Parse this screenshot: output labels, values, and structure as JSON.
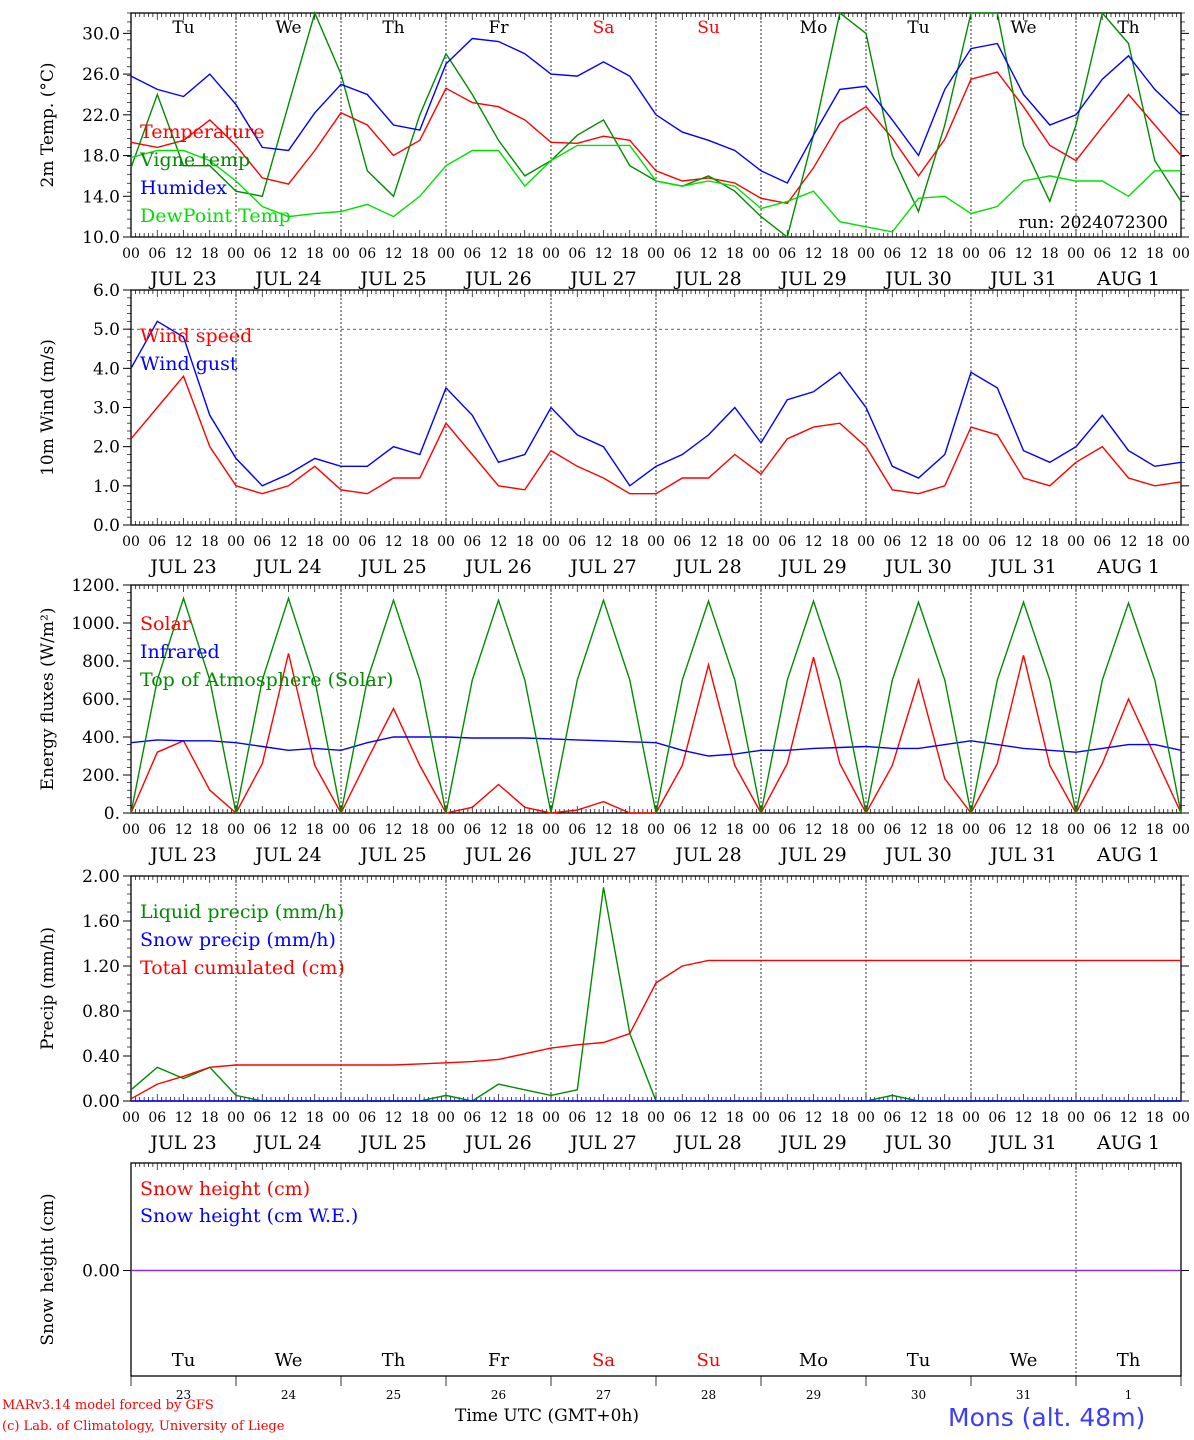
{
  "chart_data": [
    {
      "type": "line",
      "ylabel": "2m Temp. (°C)",
      "ylim": [
        10,
        32
      ],
      "yticks": [
        "10.0",
        "14.0",
        "18.0",
        "22.0",
        "26.0",
        "30.0"
      ],
      "run_label": "run: 2024072300",
      "x_hours": [
        0,
        6,
        12,
        18,
        24,
        30,
        36,
        42,
        48,
        54,
        60,
        66,
        72,
        78,
        84,
        90,
        96,
        102,
        108,
        114,
        120,
        126,
        132,
        138,
        144,
        150,
        156,
        162,
        168,
        174,
        180,
        186,
        192,
        198,
        204,
        210,
        216,
        222,
        228,
        234,
        240
      ],
      "series": [
        {
          "name": "Temperature",
          "color": "#ff0000",
          "values": [
            19.3,
            18.8,
            19.5,
            21.5,
            19.0,
            15.8,
            15.2,
            18.5,
            22.2,
            21.0,
            18.0,
            19.5,
            24.6,
            23.2,
            22.8,
            21.5,
            19.3,
            19.2,
            19.9,
            19.5,
            16.5,
            15.5,
            15.8,
            15.3,
            13.8,
            13.3,
            16.8,
            21.2,
            22.8,
            19.7,
            16.0,
            19.6,
            25.5,
            26.2,
            22.8,
            19.0,
            17.5,
            20.8,
            24.0,
            21.0,
            18.0
          ]
        },
        {
          "name": "Vigne temp",
          "color": "#008c00",
          "values": [
            16.8,
            24.0,
            17.0,
            17.0,
            14.5,
            14.0,
            23.0,
            33.0,
            26.0,
            16.5,
            14.0,
            22.0,
            28.0,
            24.0,
            19.5,
            16.0,
            17.5,
            20.0,
            21.5,
            17.0,
            15.5,
            15.0,
            16.0,
            14.5,
            12.0,
            9.5,
            20.0,
            32.0,
            30.0,
            18.0,
            12.5,
            21.0,
            33.0,
            33.0,
            19.0,
            13.5,
            21.0,
            33.0,
            29.0,
            17.5,
            13.5
          ]
        },
        {
          "name": "Humidex",
          "color": "#0000ff",
          "values": [
            25.8,
            24.5,
            23.8,
            26.0,
            23.0,
            18.8,
            18.5,
            22.2,
            25.0,
            24.0,
            21.0,
            20.5,
            27.0,
            29.5,
            29.2,
            28.0,
            26.0,
            25.8,
            27.2,
            25.8,
            22.0,
            20.3,
            19.5,
            18.5,
            16.5,
            15.3,
            20.0,
            24.5,
            24.8,
            21.5,
            18.0,
            24.5,
            28.5,
            29.0,
            24.0,
            21.0,
            22.0,
            25.5,
            27.8,
            24.5,
            22.0
          ]
        },
        {
          "name": "DewPoint Temp",
          "color": "#00e000",
          "values": [
            17.8,
            18.5,
            18.5,
            17.5,
            15.5,
            13.0,
            12.0,
            12.3,
            12.5,
            13.2,
            12.0,
            14.0,
            17.0,
            18.5,
            18.5,
            15.0,
            17.5,
            19.0,
            19.0,
            19.0,
            15.5,
            15.0,
            15.5,
            15.0,
            12.8,
            13.5,
            14.5,
            11.5,
            11.0,
            10.5,
            13.8,
            14.0,
            12.3,
            13.0,
            15.5,
            16.0,
            15.5,
            15.5,
            14.0,
            16.5,
            16.5
          ]
        }
      ]
    },
    {
      "type": "line",
      "ylabel": "10m Wind (m/s)",
      "ylim": [
        0,
        6
      ],
      "yticks": [
        "0.0",
        "1.0",
        "2.0",
        "3.0",
        "4.0",
        "5.0",
        "6.0"
      ],
      "reference_line": 5.0,
      "x_hours": [
        0,
        6,
        12,
        18,
        24,
        30,
        36,
        42,
        48,
        54,
        60,
        66,
        72,
        78,
        84,
        90,
        96,
        102,
        108,
        114,
        120,
        126,
        132,
        138,
        144,
        150,
        156,
        162,
        168,
        174,
        180,
        186,
        192,
        198,
        204,
        210,
        216,
        222,
        228,
        234,
        240
      ],
      "series": [
        {
          "name": "Wind speed",
          "color": "#ff0000",
          "values": [
            2.2,
            3.0,
            3.8,
            2.0,
            1.0,
            0.8,
            1.0,
            1.5,
            0.9,
            0.8,
            1.2,
            1.2,
            2.6,
            1.8,
            1.0,
            0.9,
            1.9,
            1.5,
            1.2,
            0.8,
            0.8,
            1.2,
            1.2,
            1.8,
            1.3,
            2.2,
            2.5,
            2.6,
            2.0,
            0.9,
            0.8,
            1.0,
            2.5,
            2.3,
            1.2,
            1.0,
            1.6,
            2.0,
            1.2,
            1.0,
            1.1
          ]
        },
        {
          "name": "Wind gust",
          "color": "#0000ff",
          "values": [
            4.0,
            5.2,
            4.8,
            2.8,
            1.7,
            1.0,
            1.3,
            1.7,
            1.5,
            1.5,
            2.0,
            1.8,
            3.5,
            2.8,
            1.6,
            1.8,
            3.0,
            2.3,
            2.0,
            1.0,
            1.5,
            1.8,
            2.3,
            3.0,
            2.1,
            3.2,
            3.4,
            3.9,
            3.0,
            1.5,
            1.2,
            1.8,
            3.9,
            3.5,
            1.9,
            1.6,
            2.0,
            2.8,
            1.9,
            1.5,
            1.6
          ]
        }
      ]
    },
    {
      "type": "line",
      "ylabel": "Energy fluxes (W/m²)",
      "ylim": [
        0,
        1200
      ],
      "yticks": [
        "0.",
        "200.",
        "400.",
        "600.",
        "800.",
        "1000.",
        "1200."
      ],
      "x_hours": [
        0,
        6,
        12,
        18,
        24,
        30,
        36,
        42,
        48,
        54,
        60,
        66,
        72,
        78,
        84,
        90,
        96,
        102,
        108,
        114,
        120,
        126,
        132,
        138,
        144,
        150,
        156,
        162,
        168,
        174,
        180,
        186,
        192,
        198,
        204,
        210,
        216,
        222,
        228,
        234,
        240
      ],
      "series": [
        {
          "name": "Solar",
          "color": "#ff0000",
          "values": [
            0,
            320,
            380,
            120,
            0,
            260,
            840,
            250,
            0,
            280,
            550,
            250,
            0,
            30,
            150,
            30,
            0,
            15,
            60,
            0,
            0,
            250,
            780,
            250,
            0,
            260,
            820,
            260,
            0,
            250,
            700,
            180,
            0,
            260,
            830,
            250,
            0,
            260,
            600,
            300,
            0
          ]
        },
        {
          "name": "Infrared",
          "color": "#0000ff",
          "values": [
            370,
            385,
            380,
            380,
            370,
            350,
            330,
            340,
            330,
            370,
            400,
            400,
            400,
            395,
            395,
            395,
            390,
            385,
            380,
            375,
            370,
            330,
            300,
            310,
            330,
            330,
            340,
            345,
            350,
            340,
            340,
            360,
            380,
            360,
            340,
            330,
            320,
            340,
            360,
            360,
            330
          ]
        },
        {
          "name": "Top of Atmosphere (Solar)",
          "color": "#008c00",
          "values": [
            0,
            700,
            1130,
            700,
            0,
            700,
            1130,
            700,
            0,
            700,
            1120,
            700,
            0,
            700,
            1120,
            700,
            0,
            700,
            1120,
            700,
            0,
            700,
            1115,
            700,
            0,
            700,
            1115,
            700,
            0,
            700,
            1110,
            700,
            0,
            700,
            1110,
            700,
            0,
            700,
            1105,
            700,
            0
          ]
        }
      ]
    },
    {
      "type": "line",
      "ylabel": "Precip (mm/h)",
      "ylim": [
        0,
        2
      ],
      "yticks": [
        "0.00",
        "0.40",
        "0.80",
        "1.20",
        "1.60",
        "2.00"
      ],
      "x_hours": [
        0,
        6,
        12,
        18,
        24,
        30,
        36,
        42,
        48,
        54,
        60,
        66,
        72,
        78,
        84,
        90,
        96,
        102,
        108,
        114,
        120,
        126,
        132,
        138,
        144,
        150,
        156,
        162,
        168,
        174,
        180,
        186,
        192,
        198,
        204,
        210,
        216,
        222,
        228,
        234,
        240
      ],
      "series": [
        {
          "name": "Liquid precip (mm/h)",
          "color": "#008c00",
          "values": [
            0.1,
            0.3,
            0.2,
            0.3,
            0.05,
            0.0,
            0.0,
            0.0,
            0.0,
            0.0,
            0.0,
            0.0,
            0.05,
            0.0,
            0.15,
            0.1,
            0.05,
            0.1,
            1.9,
            0.6,
            0.0,
            0.0,
            0.0,
            0.0,
            0.0,
            0.0,
            0.0,
            0.0,
            0.0,
            0.05,
            0.0,
            0.0,
            0.0,
            0.0,
            0.0,
            0.0,
            0.0,
            0.0,
            0.0,
            0.0,
            0.0
          ]
        },
        {
          "name": "Snow precip (mm/h)",
          "color": "#0000ff",
          "values": [
            0,
            0,
            0,
            0,
            0,
            0,
            0,
            0,
            0,
            0,
            0,
            0,
            0,
            0,
            0,
            0,
            0,
            0,
            0,
            0,
            0,
            0,
            0,
            0,
            0,
            0,
            0,
            0,
            0,
            0,
            0,
            0,
            0,
            0,
            0,
            0,
            0,
            0,
            0,
            0,
            0
          ]
        },
        {
          "name": "Total cumulated (cm)",
          "color": "#ff0000",
          "values": [
            0.02,
            0.15,
            0.22,
            0.3,
            0.32,
            0.32,
            0.32,
            0.32,
            0.32,
            0.32,
            0.32,
            0.33,
            0.34,
            0.35,
            0.37,
            0.42,
            0.47,
            0.5,
            0.52,
            0.6,
            1.05,
            1.2,
            1.25,
            1.25,
            1.25,
            1.25,
            1.25,
            1.25,
            1.25,
            1.25,
            1.25,
            1.25,
            1.25,
            1.25,
            1.25,
            1.25,
            1.25,
            1.25,
            1.25,
            1.25,
            1.25
          ]
        }
      ]
    },
    {
      "type": "line",
      "ylabel": "Snow height (cm)",
      "ytick": "0.00",
      "series": [
        {
          "name": "Snow height (cm)",
          "color": "#ff0000",
          "values": [
            0,
            0
          ]
        },
        {
          "name": "Snow height (cm W.E.)",
          "color": "#0000ff",
          "values": [
            0,
            0
          ]
        }
      ]
    }
  ],
  "days": [
    {
      "weekday": "Tu",
      "date": "JUL 23",
      "num": "23",
      "weekend": false
    },
    {
      "weekday": "We",
      "date": "JUL 24",
      "num": "24",
      "weekend": false
    },
    {
      "weekday": "Th",
      "date": "JUL 25",
      "num": "25",
      "weekend": false
    },
    {
      "weekday": "Fr",
      "date": "JUL 26",
      "num": "26",
      "weekend": false
    },
    {
      "weekday": "Sa",
      "date": "JUL 27",
      "num": "27",
      "weekend": true
    },
    {
      "weekday": "Su",
      "date": "JUL 28",
      "num": "28",
      "weekend": true
    },
    {
      "weekday": "Mo",
      "date": "JUL 29",
      "num": "29",
      "weekend": false
    },
    {
      "weekday": "Tu",
      "date": "JUL 30",
      "num": "30",
      "weekend": false
    },
    {
      "weekday": "We",
      "date": "JUL 31",
      "num": "31",
      "weekend": false
    },
    {
      "weekday": "Th",
      "date": "AUG  1",
      "num": "1",
      "weekend": false
    }
  ],
  "hour_ticks": [
    "00",
    "06",
    "12",
    "18"
  ],
  "hour_end_tick": "00",
  "xlabel": "Time UTC (GMT+0h)",
  "footer": {
    "model": "MARv3.14 model forced by GFS",
    "credit": "(c) Lab. of Climatology, University of Liege",
    "location": "Mons (alt. 48m)"
  },
  "colors": {
    "weekend": "#ff0000",
    "axis": "#000000"
  }
}
